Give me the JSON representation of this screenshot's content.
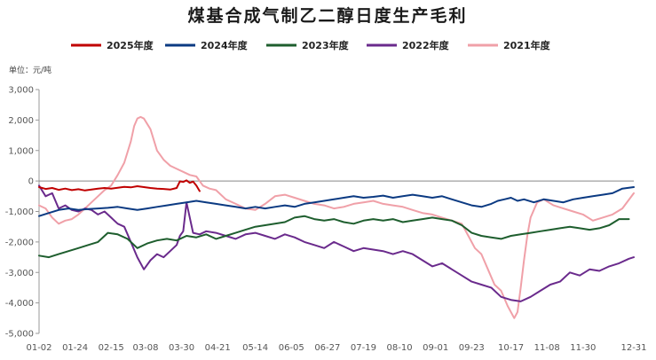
{
  "chart_data": {
    "type": "line",
    "title": "煤基合成气制乙二醇日度生产毛利",
    "unit_label": "单位：元/吨",
    "xlabel": "",
    "ylabel": "",
    "ylim": [
      -5000,
      3000
    ],
    "yticks": [
      "3,000",
      "2,000",
      "1,000",
      "0",
      "-1,000",
      "-2,000",
      "-3,000",
      "-4,000",
      "-5,000"
    ],
    "ytick_values": [
      3000,
      2000,
      1000,
      0,
      -1000,
      -2000,
      -3000,
      -4000,
      -5000
    ],
    "xticks": [
      "01-02",
      "01-24",
      "02-15",
      "03-08",
      "03-30",
      "04-21",
      "05-14",
      "06-05",
      "06-27",
      "07-19",
      "08-10",
      "09-01",
      "09-23",
      "10-17",
      "11-08",
      "11-30",
      "12-31"
    ],
    "xtick_days": [
      2,
      24,
      46,
      67,
      89,
      111,
      134,
      156,
      178,
      200,
      222,
      244,
      266,
      290,
      312,
      334,
      365
    ],
    "x_range_days": [
      2,
      365
    ],
    "grid": "none",
    "legend_position": "top",
    "series": [
      {
        "name": "2025年度",
        "color": "#c00000",
        "x": [
          2,
          6,
          10,
          14,
          18,
          22,
          26,
          30,
          34,
          38,
          42,
          46,
          50,
          54,
          58,
          62,
          66,
          70,
          74,
          78,
          82,
          86,
          88,
          90,
          92,
          94,
          96,
          98,
          100
        ],
        "values": [
          -200,
          -260,
          -230,
          -290,
          -250,
          -300,
          -270,
          -310,
          -280,
          -250,
          -230,
          -250,
          -220,
          -190,
          -210,
          -170,
          -200,
          -230,
          -250,
          -260,
          -280,
          -230,
          -10,
          -30,
          20,
          -60,
          -20,
          -150,
          -330
        ]
      },
      {
        "name": "2024年度",
        "color": "#0b3a82",
        "x": [
          2,
          8,
          14,
          20,
          26,
          32,
          38,
          44,
          50,
          56,
          62,
          68,
          74,
          80,
          86,
          92,
          98,
          104,
          110,
          116,
          122,
          128,
          134,
          140,
          146,
          152,
          158,
          164,
          170,
          176,
          182,
          188,
          194,
          200,
          206,
          212,
          218,
          224,
          230,
          236,
          242,
          248,
          254,
          260,
          266,
          272,
          278,
          282,
          286,
          290,
          294,
          298,
          304,
          310,
          316,
          322,
          328,
          334,
          340,
          346,
          352,
          358,
          365
        ],
        "values": [
          -1150,
          -1050,
          -950,
          -900,
          -950,
          -920,
          -900,
          -880,
          -850,
          -900,
          -950,
          -900,
          -850,
          -800,
          -750,
          -700,
          -650,
          -700,
          -750,
          -800,
          -850,
          -900,
          -850,
          -900,
          -850,
          -800,
          -850,
          -750,
          -700,
          -650,
          -600,
          -550,
          -500,
          -550,
          -520,
          -480,
          -550,
          -500,
          -450,
          -500,
          -550,
          -500,
          -600,
          -700,
          -800,
          -850,
          -750,
          -650,
          -600,
          -550,
          -650,
          -600,
          -700,
          -600,
          -650,
          -700,
          -600,
          -550,
          -500,
          -450,
          -400,
          -250,
          -200
        ]
      },
      {
        "name": "2023年度",
        "color": "#1e5e2e",
        "x": [
          2,
          8,
          14,
          20,
          26,
          32,
          38,
          44,
          50,
          56,
          62,
          68,
          74,
          80,
          86,
          92,
          98,
          104,
          110,
          116,
          122,
          128,
          134,
          140,
          146,
          152,
          158,
          164,
          170,
          176,
          182,
          188,
          194,
          200,
          206,
          212,
          218,
          224,
          230,
          236,
          242,
          248,
          254,
          260,
          266,
          272,
          278,
          284,
          290,
          296,
          302,
          308,
          314,
          320,
          326,
          332,
          338,
          344,
          350,
          356,
          362
        ],
        "values": [
          -2450,
          -2500,
          -2400,
          -2300,
          -2200,
          -2100,
          -2000,
          -1700,
          -1750,
          -1900,
          -2200,
          -2050,
          -1950,
          -1900,
          -1950,
          -1800,
          -1850,
          -1750,
          -1900,
          -1800,
          -1700,
          -1600,
          -1500,
          -1450,
          -1400,
          -1350,
          -1200,
          -1150,
          -1250,
          -1300,
          -1250,
          -1350,
          -1400,
          -1300,
          -1250,
          -1300,
          -1250,
          -1350,
          -1300,
          -1250,
          -1200,
          -1250,
          -1300,
          -1450,
          -1700,
          -1800,
          -1850,
          -1900,
          -1800,
          -1750,
          -1700,
          -1650,
          -1600,
          -1550,
          -1500,
          -1550,
          -1600,
          -1550,
          -1450,
          -1250,
          -1250
        ]
      },
      {
        "name": "2022年度",
        "color": "#6a2a8c",
        "x": [
          2,
          6,
          10,
          14,
          18,
          22,
          26,
          30,
          34,
          38,
          42,
          46,
          50,
          54,
          58,
          62,
          66,
          70,
          74,
          78,
          82,
          86,
          88,
          90,
          92,
          96,
          100,
          104,
          110,
          116,
          122,
          128,
          134,
          140,
          146,
          152,
          158,
          164,
          170,
          176,
          182,
          188,
          194,
          200,
          206,
          212,
          218,
          224,
          230,
          236,
          242,
          248,
          254,
          260,
          266,
          272,
          278,
          284,
          290,
          296,
          302,
          308,
          314,
          320,
          326,
          332,
          338,
          344,
          350,
          356,
          362,
          365
        ],
        "values": [
          -150,
          -500,
          -400,
          -900,
          -800,
          -950,
          -1000,
          -900,
          -950,
          -1100,
          -1000,
          -1200,
          -1400,
          -1500,
          -2000,
          -2500,
          -2900,
          -2600,
          -2400,
          -2500,
          -2300,
          -2100,
          -1800,
          -1650,
          -700,
          -1700,
          -1750,
          -1650,
          -1700,
          -1800,
          -1900,
          -1750,
          -1700,
          -1800,
          -1900,
          -1750,
          -1850,
          -2000,
          -2100,
          -2200,
          -2000,
          -2150,
          -2300,
          -2200,
          -2250,
          -2300,
          -2400,
          -2300,
          -2400,
          -2600,
          -2800,
          -2700,
          -2900,
          -3100,
          -3300,
          -3400,
          -3500,
          -3800,
          -3900,
          -3950,
          -3800,
          -3600,
          -3400,
          -3300,
          -3000,
          -3100,
          -2900,
          -2950,
          -2800,
          -2700,
          -2550,
          -2500
        ]
      },
      {
        "name": "2021年度",
        "color": "#f0a0a8",
        "x": [
          2,
          6,
          10,
          14,
          18,
          22,
          26,
          30,
          34,
          38,
          42,
          46,
          50,
          54,
          58,
          60,
          62,
          64,
          66,
          70,
          74,
          78,
          82,
          86,
          90,
          94,
          98,
          102,
          106,
          110,
          116,
          122,
          128,
          134,
          140,
          146,
          152,
          158,
          164,
          170,
          176,
          182,
          188,
          194,
          200,
          206,
          212,
          218,
          224,
          230,
          236,
          242,
          248,
          254,
          260,
          264,
          268,
          272,
          276,
          280,
          284,
          288,
          292,
          294,
          296,
          298,
          300,
          302,
          306,
          310,
          316,
          322,
          328,
          334,
          340,
          346,
          352,
          358,
          365
        ],
        "values": [
          -800,
          -900,
          -1200,
          -1400,
          -1300,
          -1250,
          -1100,
          -900,
          -700,
          -500,
          -300,
          -150,
          200,
          600,
          1300,
          1800,
          2050,
          2100,
          2050,
          1700,
          1000,
          700,
          500,
          400,
          300,
          200,
          150,
          -150,
          -250,
          -300,
          -600,
          -750,
          -900,
          -950,
          -750,
          -500,
          -450,
          -550,
          -650,
          -750,
          -800,
          -900,
          -850,
          -750,
          -700,
          -650,
          -750,
          -800,
          -850,
          -950,
          -1050,
          -1100,
          -1200,
          -1300,
          -1400,
          -1800,
          -2200,
          -2400,
          -2900,
          -3400,
          -3600,
          -4100,
          -4500,
          -4300,
          -3500,
          -2600,
          -1800,
          -1200,
          -700,
          -600,
          -800,
          -900,
          -1000,
          -1100,
          -1300,
          -1200,
          -1100,
          -900,
          -400
        ]
      }
    ]
  }
}
